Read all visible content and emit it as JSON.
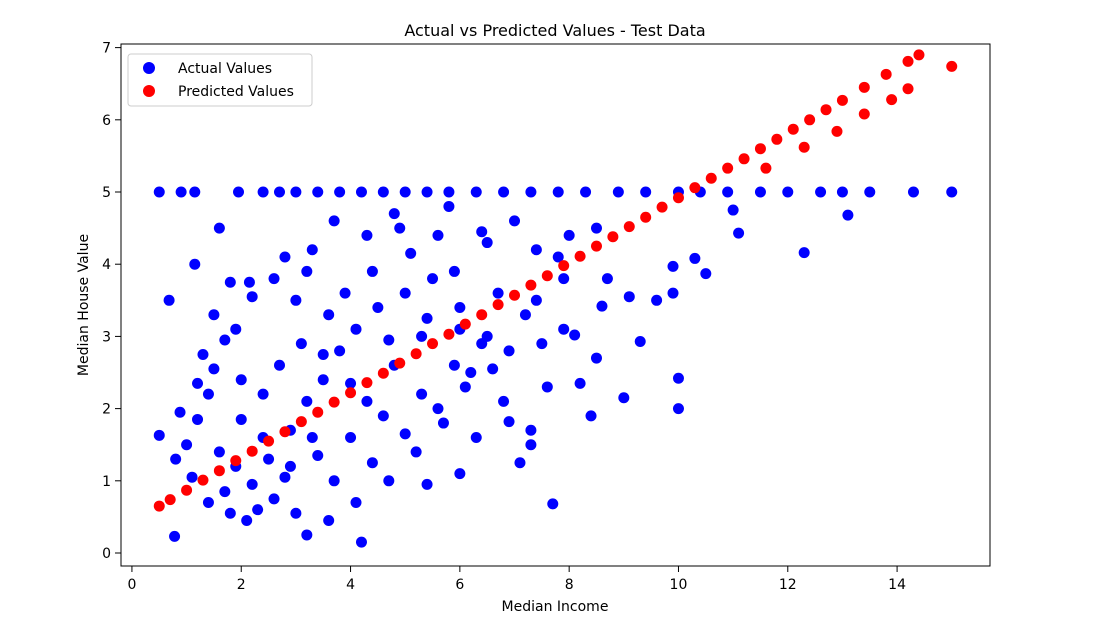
{
  "chart_data": {
    "type": "scatter",
    "title": "Actual vs Predicted Values - Test Data",
    "xlabel": "Median Income",
    "ylabel": "Median House Value",
    "xlim": [
      -0.2,
      15.7
    ],
    "ylim": [
      -0.18,
      7.05
    ],
    "xticks": [
      "0",
      "2",
      "4",
      "6",
      "8",
      "10",
      "12",
      "14"
    ],
    "yticks": [
      "0",
      "1",
      "2",
      "3",
      "4",
      "5",
      "6",
      "7"
    ],
    "legend": {
      "placement": "top-left"
    },
    "grid": false,
    "series": [
      {
        "name": "Actual Values",
        "color": "#0000ff",
        "points": [
          [
            0.5,
            1.63
          ],
          [
            0.5,
            5.0
          ],
          [
            0.68,
            3.5
          ],
          [
            0.78,
            0.23
          ],
          [
            0.88,
            1.95
          ],
          [
            0.9,
            5.0
          ],
          [
            1.15,
            5.0
          ],
          [
            1.15,
            4.0
          ],
          [
            1.6,
            4.5
          ],
          [
            1.8,
            3.75
          ],
          [
            2.15,
            3.75
          ],
          [
            1.95,
            5.0
          ],
          [
            2.4,
            5.0
          ],
          [
            2.7,
            5.0
          ],
          [
            3.0,
            5.0
          ],
          [
            3.4,
            5.0
          ],
          [
            3.8,
            5.0
          ],
          [
            4.2,
            5.0
          ],
          [
            4.6,
            5.0
          ],
          [
            5.0,
            5.0
          ],
          [
            5.4,
            5.0
          ],
          [
            5.8,
            5.0
          ],
          [
            6.3,
            5.0
          ],
          [
            6.8,
            5.0
          ],
          [
            7.3,
            5.0
          ],
          [
            7.8,
            5.0
          ],
          [
            8.3,
            5.0
          ],
          [
            8.9,
            5.0
          ],
          [
            9.4,
            5.0
          ],
          [
            10.0,
            5.0
          ],
          [
            10.4,
            5.0
          ],
          [
            10.9,
            5.0
          ],
          [
            11.5,
            5.0
          ],
          [
            12.0,
            5.0
          ],
          [
            12.6,
            5.0
          ],
          [
            13.0,
            5.0
          ],
          [
            13.5,
            5.0
          ],
          [
            14.3,
            5.0
          ],
          [
            15.0,
            5.0
          ],
          [
            4.9,
            4.5
          ],
          [
            5.6,
            4.4
          ],
          [
            6.5,
            4.3
          ],
          [
            7.0,
            4.6
          ],
          [
            7.4,
            4.2
          ],
          [
            8.0,
            4.4
          ],
          [
            8.5,
            4.5
          ],
          [
            3.2,
            0.25
          ],
          [
            4.2,
            0.15
          ],
          [
            2.3,
            0.6
          ],
          [
            7.1,
            1.25
          ],
          [
            7.7,
            0.68
          ],
          [
            7.3,
            1.7
          ],
          [
            7.6,
            2.3
          ],
          [
            8.2,
            2.35
          ],
          [
            9.0,
            2.15
          ],
          [
            9.3,
            2.93
          ],
          [
            10.0,
            2.0
          ],
          [
            10.0,
            2.42
          ],
          [
            9.9,
            3.97
          ],
          [
            10.3,
            4.08
          ],
          [
            10.5,
            3.87
          ],
          [
            9.9,
            3.6
          ],
          [
            9.6,
            3.5
          ],
          [
            11.0,
            4.75
          ],
          [
            11.1,
            4.43
          ],
          [
            12.3,
            4.16
          ],
          [
            13.1,
            4.68
          ],
          [
            6.0,
            1.1
          ],
          [
            6.3,
            1.6
          ],
          [
            5.4,
            0.95
          ],
          [
            6.9,
            1.82
          ],
          [
            6.6,
            2.55
          ],
          [
            8.1,
            3.02
          ],
          [
            8.6,
            3.42
          ],
          [
            7.9,
            3.8
          ],
          [
            1.3,
            2.75
          ],
          [
            1.7,
            2.95
          ],
          [
            1.5,
            3.3
          ],
          [
            1.9,
            3.1
          ],
          [
            2.2,
            3.55
          ],
          [
            2.6,
            3.8
          ],
          [
            1.2,
            1.85
          ],
          [
            1.4,
            2.2
          ],
          [
            1.0,
            1.5
          ],
          [
            0.8,
            1.3
          ],
          [
            1.1,
            1.05
          ],
          [
            1.6,
            1.4
          ],
          [
            2.0,
            2.4
          ],
          [
            3.3,
            4.2
          ],
          [
            3.7,
            4.6
          ],
          [
            4.3,
            4.4
          ],
          [
            5.1,
            4.15
          ],
          [
            5.9,
            3.9
          ],
          [
            6.7,
            3.6
          ],
          [
            7.4,
            3.5
          ],
          [
            7.9,
            3.1
          ],
          [
            2.5,
            1.3
          ],
          [
            2.9,
            1.7
          ],
          [
            3.2,
            2.1
          ],
          [
            3.5,
            2.4
          ],
          [
            3.8,
            2.8
          ],
          [
            4.1,
            3.1
          ],
          [
            4.5,
            3.4
          ],
          [
            5.0,
            3.6
          ],
          [
            5.5,
            3.8
          ],
          [
            6.0,
            3.4
          ],
          [
            6.4,
            2.9
          ],
          [
            6.1,
            2.3
          ],
          [
            5.7,
            1.8
          ],
          [
            5.2,
            1.4
          ],
          [
            4.7,
            1.0
          ],
          [
            4.1,
            0.7
          ],
          [
            3.6,
            0.45
          ],
          [
            3.0,
            0.55
          ],
          [
            2.6,
            0.75
          ],
          [
            2.2,
            0.95
          ],
          [
            1.9,
            1.2
          ],
          [
            2.8,
            1.05
          ],
          [
            3.4,
            1.35
          ],
          [
            4.0,
            1.6
          ],
          [
            4.6,
            1.9
          ],
          [
            5.3,
            2.2
          ],
          [
            5.9,
            2.6
          ],
          [
            6.5,
            3.0
          ],
          [
            7.2,
            3.3
          ],
          [
            3.1,
            2.9
          ],
          [
            2.7,
            2.6
          ],
          [
            2.4,
            2.2
          ],
          [
            3.9,
            3.6
          ],
          [
            4.4,
            3.9
          ],
          [
            3.0,
            3.5
          ],
          [
            3.6,
            3.3
          ],
          [
            4.8,
            2.6
          ],
          [
            5.3,
            3.0
          ],
          [
            4.3,
            2.1
          ],
          [
            3.3,
            1.6
          ],
          [
            2.9,
            1.2
          ],
          [
            3.7,
            1.0
          ],
          [
            4.4,
            1.25
          ],
          [
            5.0,
            1.65
          ],
          [
            5.6,
            2.0
          ],
          [
            6.2,
            2.5
          ],
          [
            6.9,
            2.8
          ],
          [
            7.5,
            2.9
          ],
          [
            1.8,
            0.55
          ],
          [
            2.1,
            0.45
          ],
          [
            1.4,
            0.7
          ],
          [
            1.7,
            0.85
          ],
          [
            2.4,
            1.6
          ],
          [
            2.0,
            1.85
          ],
          [
            3.5,
            2.75
          ],
          [
            4.0,
            2.35
          ],
          [
            4.7,
            2.95
          ],
          [
            5.4,
            3.25
          ],
          [
            6.0,
            3.1
          ],
          [
            3.2,
            3.9
          ],
          [
            2.8,
            4.1
          ],
          [
            4.8,
            4.7
          ],
          [
            6.4,
            4.45
          ],
          [
            5.8,
            4.8
          ],
          [
            7.8,
            4.1
          ],
          [
            8.7,
            3.8
          ],
          [
            9.1,
            3.55
          ],
          [
            8.5,
            2.7
          ],
          [
            8.4,
            1.9
          ],
          [
            6.8,
            2.1
          ],
          [
            7.3,
            1.5
          ],
          [
            1.5,
            2.55
          ],
          [
            1.2,
            2.35
          ]
        ]
      },
      {
        "name": "Predicted Values",
        "color": "#ff0000",
        "points": [
          [
            0.5,
            0.65
          ],
          [
            0.7,
            0.74
          ],
          [
            1.0,
            0.87
          ],
          [
            1.3,
            1.01
          ],
          [
            1.6,
            1.14
          ],
          [
            1.9,
            1.28
          ],
          [
            2.2,
            1.41
          ],
          [
            2.5,
            1.55
          ],
          [
            2.8,
            1.68
          ],
          [
            3.1,
            1.82
          ],
          [
            3.4,
            1.95
          ],
          [
            3.7,
            2.09
          ],
          [
            4.0,
            2.22
          ],
          [
            4.3,
            2.36
          ],
          [
            4.6,
            2.49
          ],
          [
            4.9,
            2.63
          ],
          [
            5.2,
            2.76
          ],
          [
            5.5,
            2.9
          ],
          [
            5.8,
            3.03
          ],
          [
            6.1,
            3.17
          ],
          [
            6.4,
            3.3
          ],
          [
            6.7,
            3.44
          ],
          [
            7.0,
            3.57
          ],
          [
            7.3,
            3.71
          ],
          [
            7.6,
            3.84
          ],
          [
            7.9,
            3.98
          ],
          [
            8.2,
            4.11
          ],
          [
            8.5,
            4.25
          ],
          [
            8.8,
            4.38
          ],
          [
            9.1,
            4.52
          ],
          [
            9.4,
            4.65
          ],
          [
            9.7,
            4.79
          ],
          [
            10.0,
            4.92
          ],
          [
            10.3,
            5.06
          ],
          [
            10.6,
            5.19
          ],
          [
            10.9,
            5.33
          ],
          [
            11.2,
            5.46
          ],
          [
            11.5,
            5.6
          ],
          [
            11.8,
            5.73
          ],
          [
            12.1,
            5.87
          ],
          [
            12.4,
            6.0
          ],
          [
            12.7,
            6.14
          ],
          [
            13.0,
            6.27
          ],
          [
            13.4,
            6.45
          ],
          [
            13.8,
            6.63
          ],
          [
            14.2,
            6.81
          ],
          [
            14.4,
            6.9
          ],
          [
            15.0,
            6.74
          ],
          [
            11.6,
            5.33
          ],
          [
            12.3,
            5.62
          ],
          [
            12.9,
            5.84
          ],
          [
            13.4,
            6.08
          ],
          [
            13.9,
            6.28
          ],
          [
            14.2,
            6.43
          ]
        ]
      }
    ]
  }
}
